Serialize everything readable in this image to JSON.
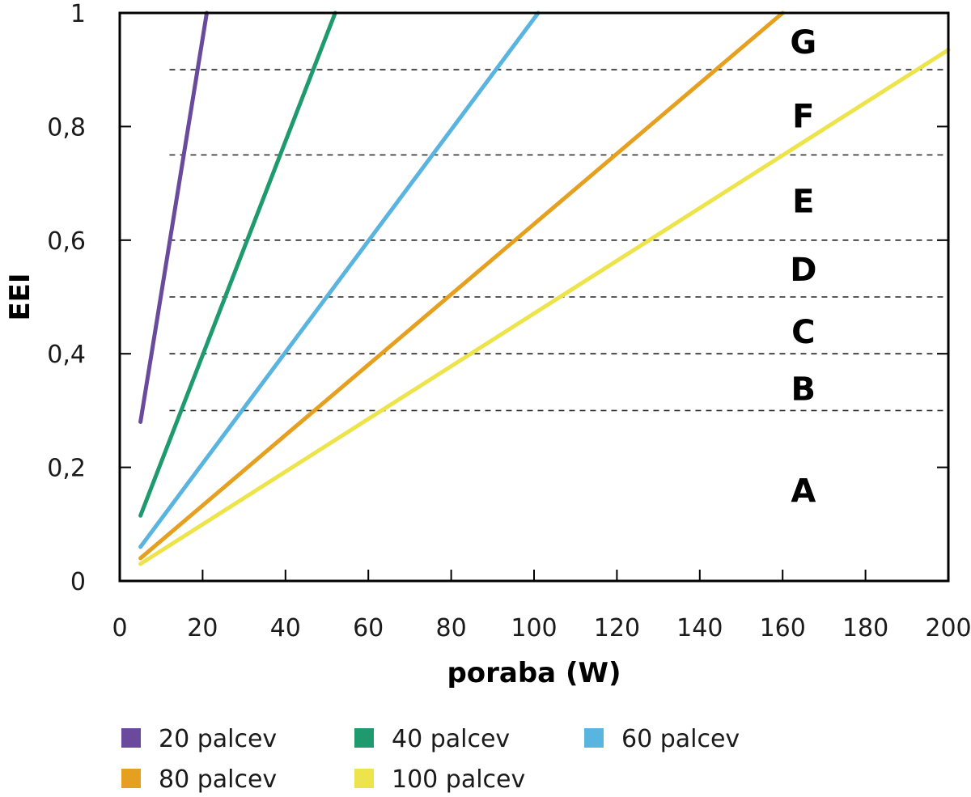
{
  "chart_data": {
    "type": "line",
    "title": "",
    "xlabel": "poraba (W)",
    "ylabel": "EEI",
    "xlim": [
      0,
      200
    ],
    "ylim": [
      0,
      1
    ],
    "x_ticks": [
      0,
      20,
      40,
      60,
      80,
      100,
      120,
      140,
      160,
      180,
      200
    ],
    "x_tick_labels": [
      "0",
      "20",
      "40",
      "60",
      "80",
      "100",
      "120",
      "140",
      "160",
      "180",
      "200"
    ],
    "y_ticks": [
      0,
      0.2,
      0.4,
      0.6,
      0.8,
      1
    ],
    "y_tick_labels": [
      "0",
      "0,2",
      "0,4",
      "0,6",
      "0,8",
      "1"
    ],
    "grid": false,
    "class_boundaries": [
      0.3,
      0.4,
      0.5,
      0.6,
      0.75,
      0.9
    ],
    "class_labels": [
      {
        "label": "A",
        "y": 0.16
      },
      {
        "label": "B",
        "y": 0.34
      },
      {
        "label": "C",
        "y": 0.44
      },
      {
        "label": "D",
        "y": 0.55
      },
      {
        "label": "E",
        "y": 0.67
      },
      {
        "label": "F",
        "y": 0.82
      },
      {
        "label": "G",
        "y": 0.95
      }
    ],
    "class_label_x": 165,
    "legend_position": "bottom",
    "series": [
      {
        "name": "20 palcev",
        "color": "#6a4a9c",
        "x": [
          5,
          21
        ],
        "y": [
          0.28,
          1.0
        ]
      },
      {
        "name": "40 palcev",
        "color": "#1e9a6e",
        "x": [
          5,
          52
        ],
        "y": [
          0.115,
          1.0
        ]
      },
      {
        "name": "60 palcev",
        "color": "#5ab4e0",
        "x": [
          5,
          101
        ],
        "y": [
          0.06,
          1.0
        ]
      },
      {
        "name": "80 palcev",
        "color": "#e6a020",
        "x": [
          5,
          160
        ],
        "y": [
          0.04,
          1.0
        ]
      },
      {
        "name": "100 palcev",
        "color": "#ece44a",
        "x": [
          5,
          200
        ],
        "y": [
          0.03,
          0.935
        ]
      }
    ]
  }
}
